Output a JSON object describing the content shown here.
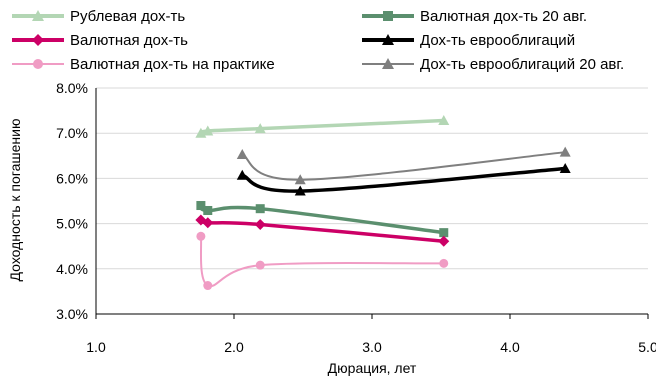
{
  "chart_data": {
    "type": "line",
    "title": "",
    "xlabel": "Дюрация, лет",
    "ylabel": "Доходность к погашению",
    "xlim": [
      1.0,
      5.0
    ],
    "ylim": [
      3.0,
      8.0
    ],
    "xticks": [
      "1.0",
      "2.0",
      "3.0",
      "4.0",
      "5.0"
    ],
    "yticks": [
      "3.0%",
      "4.0%",
      "5.0%",
      "6.0%",
      "7.0%",
      "8.0%"
    ],
    "grid": "horizontal",
    "legend_position": "top",
    "series": [
      {
        "name": "Рублевая дох-ть",
        "color": "#b3d6b4",
        "marker": "triangle",
        "x": [
          1.76,
          1.81,
          2.19,
          3.52
        ],
        "y": [
          7.0,
          7.05,
          7.1,
          7.28
        ]
      },
      {
        "name": "Валютная дох-ть 20 авг.",
        "color": "#5b8f6e",
        "marker": "square",
        "x": [
          1.76,
          1.81,
          2.19,
          3.52
        ],
        "y": [
          5.4,
          5.29,
          5.33,
          4.8
        ]
      },
      {
        "name": "Валютная дох-ть",
        "color": "#cc0066",
        "marker": "diamond",
        "x": [
          1.76,
          1.81,
          2.19,
          3.52
        ],
        "y": [
          5.08,
          5.02,
          4.98,
          4.61
        ]
      },
      {
        "name": "Дох-ть еврооблигаций",
        "color": "#000000",
        "marker": "triangle",
        "x": [
          2.06,
          2.48,
          4.4
        ],
        "y": [
          6.07,
          5.72,
          6.22
        ]
      },
      {
        "name": "Валютная дох-ть на практике",
        "color": "#f09cc4",
        "marker": "circle",
        "x": [
          1.76,
          1.81,
          2.19,
          3.52
        ],
        "y": [
          4.72,
          3.63,
          4.08,
          4.12
        ]
      },
      {
        "name": "Дох-ть еврооблигаций 20 авг.",
        "color": "#7f7f7f",
        "marker": "triangle",
        "x": [
          2.06,
          2.48,
          4.4
        ],
        "y": [
          6.53,
          5.97,
          6.58
        ]
      }
    ]
  }
}
